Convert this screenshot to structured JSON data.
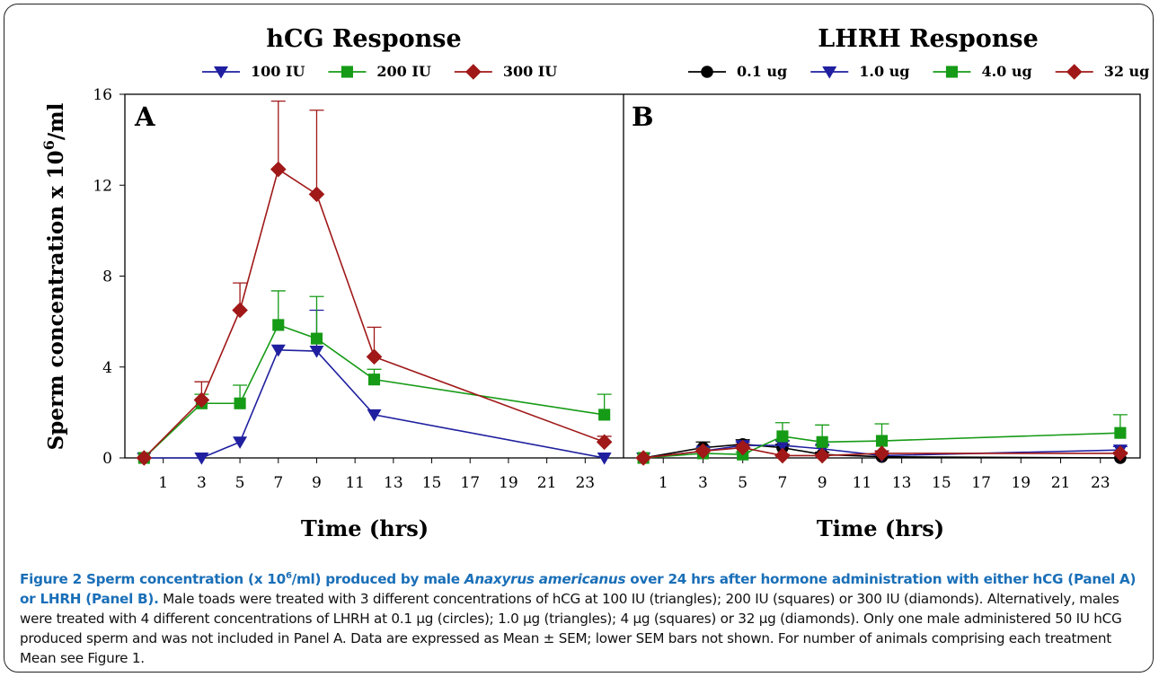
{
  "chart_data": [
    {
      "type": "line",
      "panel_label": "A",
      "title": "hCG Response",
      "xlabel": "Time (hrs)",
      "ylabel": "Sperm concentration x 10",
      "ylabel_exponent": "6",
      "ylabel_unit": "/ml",
      "x_ticks": [
        "1",
        "3",
        "5",
        "7",
        "9",
        "11",
        "13",
        "15",
        "17",
        "19",
        "21",
        "23"
      ],
      "y_ticks": [
        "0",
        "4",
        "8",
        "12",
        "16"
      ],
      "xlim": [
        -1,
        25
      ],
      "ylim": [
        0,
        16
      ],
      "legend_position": "top",
      "series": [
        {
          "name": "100 IU",
          "marker": "triangle-down",
          "color": "#1f1fa0",
          "x": [
            0,
            3,
            5,
            7,
            9,
            12,
            24
          ],
          "y": [
            0,
            0,
            0.7,
            4.75,
            4.7,
            1.9,
            0
          ],
          "err": [
            0,
            0,
            0,
            0,
            1.8,
            0,
            0
          ]
        },
        {
          "name": "200 IU",
          "marker": "square",
          "color": "#169b16",
          "x": [
            0,
            3,
            5,
            7,
            9,
            12,
            24
          ],
          "y": [
            0,
            2.4,
            2.4,
            5.85,
            5.25,
            3.45,
            1.9
          ],
          "err": [
            0,
            0.4,
            0.8,
            1.5,
            1.85,
            0.45,
            0.9
          ]
        },
        {
          "name": "300 IU",
          "marker": "diamond",
          "color": "#a01818",
          "x": [
            0,
            3,
            5,
            7,
            9,
            12,
            24
          ],
          "y": [
            0,
            2.55,
            6.5,
            12.7,
            11.6,
            4.45,
            0.7
          ],
          "err": [
            0,
            0.8,
            1.2,
            3.0,
            3.7,
            1.3,
            0.25
          ]
        }
      ]
    },
    {
      "type": "line",
      "panel_label": "B",
      "title": "LHRH Response",
      "xlabel": "Time (hrs)",
      "x_ticks": [
        "1",
        "3",
        "5",
        "7",
        "9",
        "11",
        "13",
        "15",
        "17",
        "19",
        "21",
        "23"
      ],
      "xlim": [
        -1,
        25
      ],
      "ylim": [
        0,
        16
      ],
      "legend_position": "top",
      "series": [
        {
          "name": "0.1 ug",
          "marker": "circle",
          "color": "#000000",
          "x": [
            0,
            3,
            5,
            7,
            9,
            12,
            24
          ],
          "y": [
            0,
            0.45,
            0.6,
            0.45,
            0.15,
            0.05,
            0
          ],
          "err": [
            0,
            0.25,
            0.2,
            0.15,
            0.1,
            0,
            0
          ]
        },
        {
          "name": "1.0 ug",
          "marker": "triangle-down",
          "color": "#1f1fa0",
          "x": [
            0,
            3,
            5,
            7,
            9,
            12,
            24
          ],
          "y": [
            0,
            0.3,
            0.55,
            0.55,
            0.4,
            0.1,
            0.35
          ],
          "err": [
            0,
            0.15,
            0.15,
            0.2,
            0.15,
            0.05,
            0.15
          ]
        },
        {
          "name": "4.0 ug",
          "marker": "square",
          "color": "#169b16",
          "x": [
            0,
            3,
            5,
            7,
            9,
            12,
            24
          ],
          "y": [
            0,
            0.2,
            0.15,
            0.95,
            0.7,
            0.75,
            1.1
          ],
          "err": [
            0,
            0.1,
            0.1,
            0.6,
            0.75,
            0.75,
            0.8
          ]
        },
        {
          "name": "32 ug",
          "marker": "diamond",
          "color": "#a01818",
          "x": [
            0,
            3,
            5,
            7,
            9,
            12,
            24
          ],
          "y": [
            0,
            0.3,
            0.45,
            0.1,
            0.1,
            0.2,
            0.2
          ],
          "err": [
            0,
            0.1,
            0.15,
            0.05,
            0.05,
            0.1,
            0.05
          ]
        }
      ]
    }
  ],
  "caption": {
    "figure_label": "Figure 2",
    "head_pre": " Sperm concentration (x 10",
    "head_sup": "6",
    "head_mid": "/ml) produced by male ",
    "head_species": "Anaxyrus americanus",
    "head_post": " over 24 hrs after hormone administration with either hCG (Panel A) or LHRH (Panel B).",
    "body": " Male toads were treated with 3 different concentrations of hCG at 100 IU (triangles); 200 IU (squares) or 300 IU (diamonds). Alternatively, males were treated with 4 different concentrations of LHRH at 0.1 μg (circles); 1.0 μg (triangles); 4 μg (squares) or 32 μg (diamonds). Only one male administered 50 IU hCG produced sperm and was not included in Panel A. Data are expressed as Mean ± SEM; lower SEM bars not shown. For number of animals comprising each treatment Mean see Figure 1."
  }
}
